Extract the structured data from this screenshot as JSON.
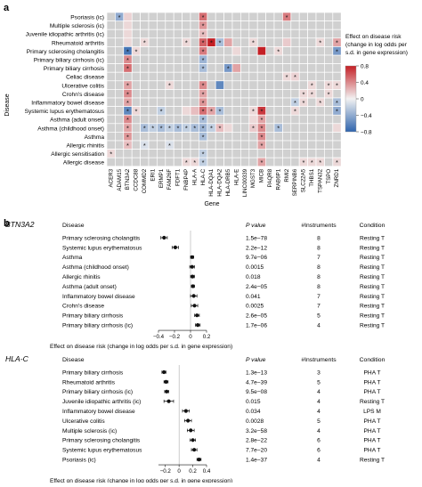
{
  "panel_a": {
    "label": "a",
    "y_axis_title": "Disease",
    "x_axis_title": "Gene",
    "legend": {
      "title_lines": [
        "Effect on disease risk",
        "(change in log odds per",
        "s.d. in gene expression)"
      ],
      "ticks": [
        "0.8",
        "0.4",
        "0",
        "−0.4",
        "−0.8"
      ],
      "colors": {
        "neg": "#2f64ad",
        "mid": "#f2f2f2",
        "pos": "#c41f25",
        "na": "#d0d0d0"
      }
    }
  },
  "panel_b": {
    "label": "b",
    "headers": {
      "disease": "Disease",
      "pvalue": "P value",
      "instruments": "#Instruments",
      "condition": "Condition"
    },
    "axis_title": "Effect on disease risk (change in log odds per s.d. in gene expression)"
  },
  "chart_data": [
    {
      "type": "heatmap",
      "title": "",
      "xlabel": "Gene",
      "ylabel": "Disease",
      "color_range": [
        -0.8,
        0.8
      ],
      "rows": [
        "Psoriasis (ic)",
        "Multiple sclerosis (ic)",
        "Juvenile idiopathic arthritis (ic)",
        "Rheumatoid arthritis",
        "Primary sclerosing cholangitis",
        "Primary biliary cirrhosis (ic)",
        "Primary biliary cirrhosis",
        "Celiac disease",
        "Ulcerative colitis",
        "Crohn's disease",
        "Inflammatory bowel disease",
        "Systemic lupus erythematosus",
        "Asthma (adult onset)",
        "Asthma (childhood onset)",
        "Asthma",
        "Allergic rhinitis",
        "Allergic sensitisation",
        "Allergic disease"
      ],
      "columns": [
        "ACER3",
        "ADAM15",
        "BTN3A2",
        "CCDC88",
        "COMMD2",
        "ERI1",
        "ERMP1",
        "FAM26F",
        "FDFT1",
        "FNBP4P",
        "HLA-A",
        "HLA-C",
        "HLA-DQA1",
        "HLA-DQA2",
        "HLA-DRB5",
        "HLA-E",
        "LINC00339",
        "MGST3",
        "MICB",
        "PAQR8",
        "RAB6P1",
        "RMI2",
        "SERPINB6",
        "SLC22A5",
        "THBS1",
        "TSPAN32",
        "TSPO",
        "ZNRD1"
      ],
      "cells": [
        {
          "r": 0,
          "c": 1,
          "v": -0.4,
          "star": true
        },
        {
          "r": 0,
          "c": 2,
          "v": 0.12,
          "star": false
        },
        {
          "r": 0,
          "c": 11,
          "v": 0.5,
          "star": true
        },
        {
          "r": 0,
          "c": 21,
          "v": 0.45,
          "star": true
        },
        {
          "r": 1,
          "c": 2,
          "v": 0.1,
          "star": false
        },
        {
          "r": 1,
          "c": 11,
          "v": 0.35,
          "star": true
        },
        {
          "r": 2,
          "c": 2,
          "v": 0.1,
          "star": false
        },
        {
          "r": 2,
          "c": 11,
          "v": 0.2,
          "star": true
        },
        {
          "r": 3,
          "c": 2,
          "v": 0.1,
          "star": false
        },
        {
          "r": 3,
          "c": 4,
          "v": 0.1,
          "star": true
        },
        {
          "r": 3,
          "c": 9,
          "v": 0.1,
          "star": true
        },
        {
          "r": 3,
          "c": 11,
          "v": 0.55,
          "star": true
        },
        {
          "r": 3,
          "c": 12,
          "v": 0.95,
          "star": true
        },
        {
          "r": 3,
          "c": 13,
          "v": -0.3,
          "star": true
        },
        {
          "r": 3,
          "c": 14,
          "v": 0.3,
          "star": false
        },
        {
          "r": 3,
          "c": 17,
          "v": 0.1,
          "star": true
        },
        {
          "r": 3,
          "c": 21,
          "v": 0.15,
          "star": false
        },
        {
          "r": 3,
          "c": 25,
          "v": 0.1,
          "star": true
        },
        {
          "r": 3,
          "c": 27,
          "v": 0.3,
          "star": true
        },
        {
          "r": 4,
          "c": 2,
          "v": -0.7,
          "star": true
        },
        {
          "r": 4,
          "c": 3,
          "v": 0.1,
          "star": true
        },
        {
          "r": 4,
          "c": 11,
          "v": 0.45,
          "star": true
        },
        {
          "r": 4,
          "c": 15,
          "v": 0.1,
          "star": false
        },
        {
          "r": 4,
          "c": 18,
          "v": 0.9,
          "star": false
        },
        {
          "r": 4,
          "c": 20,
          "v": 0.1,
          "star": true
        },
        {
          "r": 4,
          "c": 27,
          "v": -0.5,
          "star": true
        },
        {
          "r": 5,
          "c": 2,
          "v": 0.4,
          "star": true
        },
        {
          "r": 5,
          "c": 11,
          "v": -0.35,
          "star": true
        },
        {
          "r": 6,
          "c": 2,
          "v": 0.5,
          "star": true
        },
        {
          "r": 6,
          "c": 11,
          "v": -0.3,
          "star": true
        },
        {
          "r": 6,
          "c": 14,
          "v": -0.5,
          "star": true
        },
        {
          "r": 6,
          "c": 15,
          "v": 0.3,
          "star": false
        },
        {
          "r": 7,
          "c": 21,
          "v": 0.1,
          "star": true
        },
        {
          "r": 7,
          "c": 22,
          "v": 0.12,
          "star": true
        },
        {
          "r": 8,
          "c": 2,
          "v": 0.3,
          "star": true
        },
        {
          "r": 8,
          "c": 7,
          "v": 0.1,
          "star": true
        },
        {
          "r": 8,
          "c": 11,
          "v": 0.4,
          "star": true
        },
        {
          "r": 8,
          "c": 13,
          "v": -0.6,
          "star": false
        },
        {
          "r": 8,
          "c": 24,
          "v": 0.1,
          "star": true
        },
        {
          "r": 8,
          "c": 26,
          "v": 0.1,
          "star": true
        },
        {
          "r": 8,
          "c": 27,
          "v": 0.1,
          "star": true
        },
        {
          "r": 9,
          "c": 2,
          "v": 0.4,
          "star": true
        },
        {
          "r": 9,
          "c": 11,
          "v": 0.3,
          "star": true
        },
        {
          "r": 9,
          "c": 23,
          "v": 0.1,
          "star": true
        },
        {
          "r": 9,
          "c": 24,
          "v": 0.1,
          "star": true
        },
        {
          "r": 9,
          "c": 26,
          "v": 0.1,
          "star": true
        },
        {
          "r": 10,
          "c": 2,
          "v": 0.3,
          "star": true
        },
        {
          "r": 10,
          "c": 11,
          "v": 0.35,
          "star": true
        },
        {
          "r": 10,
          "c": 22,
          "v": -0.2,
          "star": true
        },
        {
          "r": 10,
          "c": 23,
          "v": 0.1,
          "star": true
        },
        {
          "r": 10,
          "c": 25,
          "v": 0.1,
          "star": true
        },
        {
          "r": 10,
          "c": 27,
          "v": -0.3,
          "star": true
        },
        {
          "r": 11,
          "c": 2,
          "v": -0.6,
          "star": true
        },
        {
          "r": 11,
          "c": 3,
          "v": 0.1,
          "star": true
        },
        {
          "r": 11,
          "c": 6,
          "v": -0.2,
          "star": true
        },
        {
          "r": 11,
          "c": 9,
          "v": 0.1,
          "star": false
        },
        {
          "r": 11,
          "c": 10,
          "v": 0.2,
          "star": false
        },
        {
          "r": 11,
          "c": 11,
          "v": 0.5,
          "star": true
        },
        {
          "r": 11,
          "c": 12,
          "v": 0.3,
          "star": true
        },
        {
          "r": 11,
          "c": 13,
          "v": -0.3,
          "star": true
        },
        {
          "r": 11,
          "c": 17,
          "v": 0.1,
          "star": true
        },
        {
          "r": 11,
          "c": 18,
          "v": 0.7,
          "star": true
        },
        {
          "r": 11,
          "c": 22,
          "v": 0.1,
          "star": true
        },
        {
          "r": 11,
          "c": 27,
          "v": -0.4,
          "star": true
        },
        {
          "r": 12,
          "c": 2,
          "v": 0.4,
          "star": true
        },
        {
          "r": 12,
          "c": 11,
          "v": -0.3,
          "star": true
        },
        {
          "r": 12,
          "c": 17,
          "v": 0.1,
          "star": false
        },
        {
          "r": 12,
          "c": 18,
          "v": 0.3,
          "star": true
        },
        {
          "r": 13,
          "c": 2,
          "v": 0.3,
          "star": true
        },
        {
          "r": 13,
          "c": 4,
          "v": -0.3,
          "star": true
        },
        {
          "r": 13,
          "c": 5,
          "v": -0.2,
          "star": true
        },
        {
          "r": 13,
          "c": 6,
          "v": -0.3,
          "star": true
        },
        {
          "r": 13,
          "c": 7,
          "v": -0.2,
          "star": true
        },
        {
          "r": 13,
          "c": 8,
          "v": -0.3,
          "star": true
        },
        {
          "r": 13,
          "c": 9,
          "v": -0.2,
          "star": true
        },
        {
          "r": 13,
          "c": 10,
          "v": -0.3,
          "star": true
        },
        {
          "r": 13,
          "c": 11,
          "v": -0.35,
          "star": true
        },
        {
          "r": 13,
          "c": 12,
          "v": -0.2,
          "star": true
        },
        {
          "r": 13,
          "c": 13,
          "v": 0.2,
          "star": true
        },
        {
          "r": 13,
          "c": 14,
          "v": 0.1,
          "star": false
        },
        {
          "r": 13,
          "c": 17,
          "v": 0.15,
          "star": true
        },
        {
          "r": 13,
          "c": 18,
          "v": 0.4,
          "star": true
        },
        {
          "r": 13,
          "c": 20,
          "v": -0.3,
          "star": true
        },
        {
          "r": 13,
          "c": 27,
          "v": 0.1,
          "star": false
        },
        {
          "r": 14,
          "c": 2,
          "v": 0.35,
          "star": true
        },
        {
          "r": 14,
          "c": 11,
          "v": -0.3,
          "star": true
        },
        {
          "r": 14,
          "c": 18,
          "v": 0.4,
          "star": true
        },
        {
          "r": 15,
          "c": 2,
          "v": 0.2,
          "star": true
        },
        {
          "r": 15,
          "c": 4,
          "v": -0.1,
          "star": true
        },
        {
          "r": 15,
          "c": 7,
          "v": -0.1,
          "star": true
        },
        {
          "r": 15,
          "c": 18,
          "v": 0.3,
          "star": true
        },
        {
          "r": 16,
          "c": 0,
          "v": 0.1,
          "star": true
        },
        {
          "r": 16,
          "c": 11,
          "v": -0.2,
          "star": true
        },
        {
          "r": 17,
          "c": 9,
          "v": 0.1,
          "star": true
        },
        {
          "r": 17,
          "c": 10,
          "v": 0.1,
          "star": true
        },
        {
          "r": 17,
          "c": 11,
          "v": -0.2,
          "star": true
        },
        {
          "r": 17,
          "c": 18,
          "v": 0.3,
          "star": true
        },
        {
          "r": 17,
          "c": 23,
          "v": 0.1,
          "star": true
        },
        {
          "r": 17,
          "c": 24,
          "v": 0.1,
          "star": true
        },
        {
          "r": 17,
          "c": 25,
          "v": 0.1,
          "star": true
        },
        {
          "r": 17,
          "c": 27,
          "v": 0.1,
          "star": true
        }
      ]
    },
    {
      "type": "scatter",
      "subtype": "forest",
      "gene": "BTN3A2",
      "xlabel": "Effect on disease risk (change in log odds per s.d. in gene expression)",
      "xlim": [
        -0.4,
        0.2
      ],
      "xticks": [
        "−0.4",
        "−0.2",
        "0",
        "0.2"
      ],
      "rows": [
        {
          "disease": "Primary sclerosing cholangitis",
          "effect": -0.33,
          "lo": -0.37,
          "hi": -0.29,
          "pvalue": "1.5e−78",
          "instruments": "8",
          "condition": "Resting T"
        },
        {
          "disease": "Systemic lupus erythematosus",
          "effect": -0.19,
          "lo": -0.23,
          "hi": -0.15,
          "pvalue": "2.2e−12",
          "instruments": "8",
          "condition": "Resting T"
        },
        {
          "disease": "Asthma",
          "effect": 0.02,
          "lo": 0.0,
          "hi": 0.04,
          "pvalue": "9.7e−06",
          "instruments": "7",
          "condition": "Resting T"
        },
        {
          "disease": "Asthma (childhood onset)",
          "effect": 0.02,
          "lo": -0.01,
          "hi": 0.05,
          "pvalue": "0.0015",
          "instruments": "8",
          "condition": "Resting T"
        },
        {
          "disease": "Allergic rhinitis",
          "effect": 0.025,
          "lo": 0.0,
          "hi": 0.05,
          "pvalue": "0.018",
          "instruments": "8",
          "condition": "Resting T"
        },
        {
          "disease": "Asthma (adult onset)",
          "effect": 0.03,
          "lo": 0.01,
          "hi": 0.05,
          "pvalue": "2.4e−05",
          "instruments": "8",
          "condition": "Resting T"
        },
        {
          "disease": "Inflammatory bowel disease",
          "effect": 0.04,
          "lo": 0.0,
          "hi": 0.08,
          "pvalue": "0.041",
          "instruments": "7",
          "condition": "Resting T"
        },
        {
          "disease": "Crohn's disease",
          "effect": 0.05,
          "lo": 0.01,
          "hi": 0.09,
          "pvalue": "0.0025",
          "instruments": "7",
          "condition": "Resting T"
        },
        {
          "disease": "Primary biliary cirrhosis",
          "effect": 0.08,
          "lo": 0.05,
          "hi": 0.11,
          "pvalue": "2.6e−05",
          "instruments": "5",
          "condition": "Resting T"
        },
        {
          "disease": "Primary biliary cirrhosis (ic)",
          "effect": 0.09,
          "lo": 0.06,
          "hi": 0.12,
          "pvalue": "1.7e−06",
          "instruments": "4",
          "condition": "Resting T"
        }
      ]
    },
    {
      "type": "scatter",
      "subtype": "forest",
      "gene": "HLA-C",
      "xlabel": "Effect on disease risk (change in log odds per s.d. in gene expression)",
      "xlim": [
        -0.3,
        0.4
      ],
      "xticks": [
        "−0.2",
        "0",
        "0.2",
        "0.4"
      ],
      "rows": [
        {
          "disease": "Primary biliary cirrhosis",
          "effect": -0.22,
          "lo": -0.25,
          "hi": -0.19,
          "pvalue": "1.3e−13",
          "instruments": "3",
          "condition": "PHA T"
        },
        {
          "disease": "Rheumatoid arthritis",
          "effect": -0.19,
          "lo": -0.22,
          "hi": -0.16,
          "pvalue": "4.7e−39",
          "instruments": "5",
          "condition": "PHA T"
        },
        {
          "disease": "Primary biliary cirrhosis (ic)",
          "effect": -0.18,
          "lo": -0.21,
          "hi": -0.15,
          "pvalue": "9.5e−08",
          "instruments": "4",
          "condition": "PHA T"
        },
        {
          "disease": "Juvenile idiopathic arthritis (ic)",
          "effect": -0.15,
          "lo": -0.22,
          "hi": -0.08,
          "pvalue": "0.015",
          "instruments": "4",
          "condition": "Resting T"
        },
        {
          "disease": "Inflammatory bowel disease",
          "effect": 0.1,
          "lo": 0.05,
          "hi": 0.15,
          "pvalue": "0.034",
          "instruments": "4",
          "condition": "LPS M"
        },
        {
          "disease": "Ulcerative colitis",
          "effect": 0.13,
          "lo": 0.08,
          "hi": 0.18,
          "pvalue": "0.0028",
          "instruments": "5",
          "condition": "PHA T"
        },
        {
          "disease": "Multiple sclerosis (ic)",
          "effect": 0.17,
          "lo": 0.12,
          "hi": 0.22,
          "pvalue": "3.2e−58",
          "instruments": "4",
          "condition": "PHA T"
        },
        {
          "disease": "Primary sclerosing cholangitis",
          "effect": 0.2,
          "lo": 0.16,
          "hi": 0.24,
          "pvalue": "2.8e−22",
          "instruments": "6",
          "condition": "PHA T"
        },
        {
          "disease": "Systemic lupus erythematosus",
          "effect": 0.22,
          "lo": 0.18,
          "hi": 0.26,
          "pvalue": "7.7e−20",
          "instruments": "6",
          "condition": "PHA T"
        },
        {
          "disease": "Psoriasis (ic)",
          "effect": 0.29,
          "lo": 0.26,
          "hi": 0.32,
          "pvalue": "1.4e−37",
          "instruments": "4",
          "condition": "Resting T"
        }
      ]
    }
  ]
}
